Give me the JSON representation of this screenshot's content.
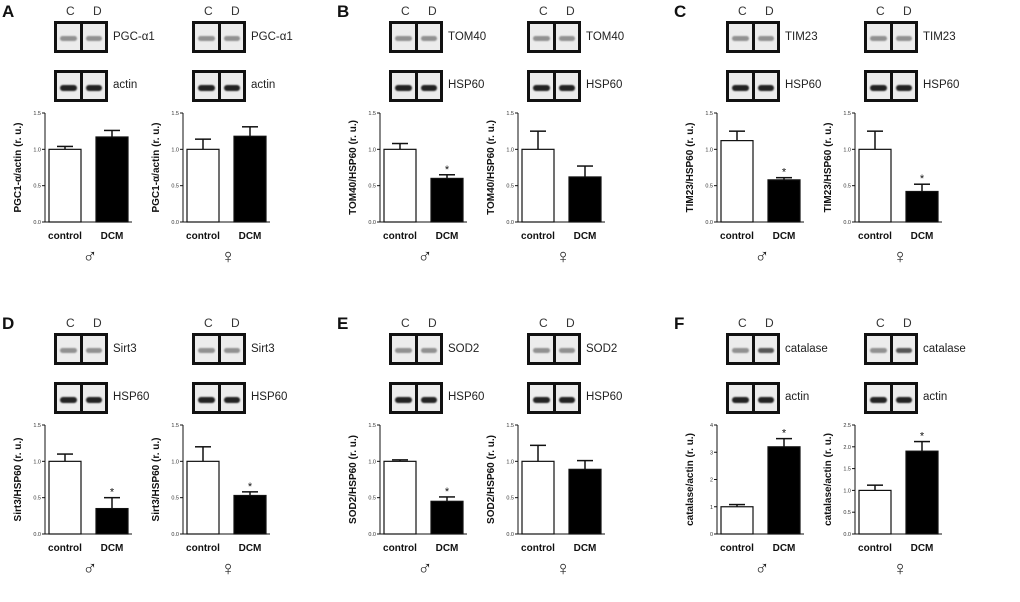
{
  "groups": [
    {
      "letter": "A"
    },
    {
      "letter": "B"
    },
    {
      "letter": "C"
    },
    {
      "letter": "D"
    },
    {
      "letter": "E"
    },
    {
      "letter": "F"
    }
  ],
  "lanes": [
    "C",
    "D"
  ],
  "categories": [
    "control",
    "DCM"
  ],
  "sex_symbols": {
    "male": "♂",
    "female": "♀"
  },
  "colors": {
    "control": "#ffffff",
    "dcm": "#000000",
    "axis": "#111111"
  },
  "chart_data": [
    {
      "type": "bar",
      "group": "A",
      "sex": "male",
      "blots": [
        "PGC-α1",
        "actin"
      ],
      "ylabel": "PGC1-α/actin (r. u.)",
      "ylim": [
        0,
        1.5
      ],
      "yticks": [
        "0.0",
        "0.5",
        "1.0",
        "1.5"
      ],
      "ytick_values": [
        0,
        0.5,
        1,
        1.5
      ],
      "values": [
        1.0,
        1.17
      ],
      "errors": [
        0.04,
        0.09
      ],
      "significant": [
        false,
        false
      ]
    },
    {
      "type": "bar",
      "group": "A",
      "sex": "female",
      "blots": [
        "PGC-α1",
        "actin"
      ],
      "ylabel": "PGC1-α/actin (r. u.)",
      "ylim": [
        0,
        1.5
      ],
      "yticks": [
        "0.0",
        "0.5",
        "1.0",
        "1.5"
      ],
      "ytick_values": [
        0,
        0.5,
        1,
        1.5
      ],
      "values": [
        1.0,
        1.18
      ],
      "errors": [
        0.14,
        0.13
      ],
      "significant": [
        false,
        false
      ]
    },
    {
      "type": "bar",
      "group": "B",
      "sex": "male",
      "blots": [
        "TOM40",
        "HSP60"
      ],
      "ylabel": "TOM40/HSP60 (r. u.)",
      "ylim": [
        0,
        1.5
      ],
      "yticks": [
        "0.0",
        "0.5",
        "1.0",
        "1.5"
      ],
      "ytick_values": [
        0,
        0.5,
        1,
        1.5
      ],
      "values": [
        1.0,
        0.6
      ],
      "errors": [
        0.08,
        0.05
      ],
      "significant": [
        false,
        true
      ]
    },
    {
      "type": "bar",
      "group": "B",
      "sex": "female",
      "blots": [
        "TOM40",
        "HSP60"
      ],
      "ylabel": "TOM40/HSP60 (r. u.)",
      "ylim": [
        0,
        1.5
      ],
      "yticks": [
        "0.0",
        "0.5",
        "1.0",
        "1.5"
      ],
      "ytick_values": [
        0,
        0.5,
        1,
        1.5
      ],
      "values": [
        1.0,
        0.62
      ],
      "errors": [
        0.25,
        0.15
      ],
      "significant": [
        false,
        false
      ]
    },
    {
      "type": "bar",
      "group": "C",
      "sex": "male",
      "blots": [
        "TIM23",
        "HSP60"
      ],
      "ylabel": "TIM23/HSP60 (r. u.)",
      "ylim": [
        0,
        1.5
      ],
      "yticks": [
        "0.0",
        "0.5",
        "1.0",
        "1.5"
      ],
      "ytick_values": [
        0,
        0.5,
        1,
        1.5
      ],
      "values": [
        1.12,
        0.58
      ],
      "errors": [
        0.13,
        0.03
      ],
      "significant": [
        false,
        true
      ]
    },
    {
      "type": "bar",
      "group": "C",
      "sex": "female",
      "blots": [
        "TIM23",
        "HSP60"
      ],
      "ylabel": "TIM23/HSP60 (r. u.)",
      "ylim": [
        0,
        1.5
      ],
      "yticks": [
        "0.0",
        "0.5",
        "1.0",
        "1.5"
      ],
      "ytick_values": [
        0,
        0.5,
        1,
        1.5
      ],
      "values": [
        1.0,
        0.42
      ],
      "errors": [
        0.25,
        0.1
      ],
      "significant": [
        false,
        true
      ]
    },
    {
      "type": "bar",
      "group": "D",
      "sex": "male",
      "blots": [
        "Sirt3",
        "HSP60"
      ],
      "ylabel": "Sirt3/HSP60 (r. u.)",
      "ylim": [
        0,
        1.5
      ],
      "yticks": [
        "0.0",
        "0.5",
        "1.0",
        "1.5"
      ],
      "ytick_values": [
        0,
        0.5,
        1,
        1.5
      ],
      "values": [
        1.0,
        0.35
      ],
      "errors": [
        0.1,
        0.15
      ],
      "significant": [
        false,
        true
      ]
    },
    {
      "type": "bar",
      "group": "D",
      "sex": "female",
      "blots": [
        "Sirt3",
        "HSP60"
      ],
      "ylabel": "Sirt3/HSP60 (r. u.)",
      "ylim": [
        0,
        1.5
      ],
      "yticks": [
        "0.0",
        "0.5",
        "1.0",
        "1.5"
      ],
      "ytick_values": [
        0,
        0.5,
        1,
        1.5
      ],
      "values": [
        1.0,
        0.53
      ],
      "errors": [
        0.2,
        0.05
      ],
      "significant": [
        false,
        true
      ]
    },
    {
      "type": "bar",
      "group": "E",
      "sex": "male",
      "blots": [
        "SOD2",
        "HSP60"
      ],
      "ylabel": "SOD2/HSP60 (r. u.)",
      "ylim": [
        0,
        1.5
      ],
      "yticks": [
        "0.0",
        "0.5",
        "1.0",
        "1.5"
      ],
      "ytick_values": [
        0,
        0.5,
        1,
        1.5
      ],
      "values": [
        1.0,
        0.45
      ],
      "errors": [
        0.02,
        0.06
      ],
      "significant": [
        false,
        true
      ]
    },
    {
      "type": "bar",
      "group": "E",
      "sex": "female",
      "blots": [
        "SOD2",
        "HSP60"
      ],
      "ylabel": "SOD2/HSP60 (r. u.)",
      "ylim": [
        0,
        1.5
      ],
      "yticks": [
        "0.0",
        "0.5",
        "1.0",
        "1.5"
      ],
      "ytick_values": [
        0,
        0.5,
        1,
        1.5
      ],
      "values": [
        1.0,
        0.89
      ],
      "errors": [
        0.22,
        0.12
      ],
      "significant": [
        false,
        false
      ]
    },
    {
      "type": "bar",
      "group": "F",
      "sex": "male",
      "blots": [
        "catalase",
        "actin"
      ],
      "ylabel": "catalase/actin (r. u.)",
      "ylim": [
        0,
        4
      ],
      "yticks": [
        "0",
        "1",
        "2",
        "3",
        "4"
      ],
      "ytick_values": [
        0,
        1,
        2,
        3,
        4
      ],
      "values": [
        1.0,
        3.2
      ],
      "errors": [
        0.08,
        0.3
      ],
      "significant": [
        false,
        true
      ]
    },
    {
      "type": "bar",
      "group": "F",
      "sex": "female",
      "blots": [
        "catalase",
        "actin"
      ],
      "ylabel": "catalase/actin (r. u.)",
      "ylim": [
        0,
        2.5
      ],
      "yticks": [
        "0.0",
        "0.5",
        "1.0",
        "1.5",
        "2.0",
        "2.5"
      ],
      "ytick_values": [
        0,
        0.5,
        1,
        1.5,
        2,
        2.5
      ],
      "values": [
        1.0,
        1.9
      ],
      "errors": [
        0.12,
        0.22
      ],
      "significant": [
        false,
        true
      ]
    }
  ],
  "significance_mark": "*"
}
